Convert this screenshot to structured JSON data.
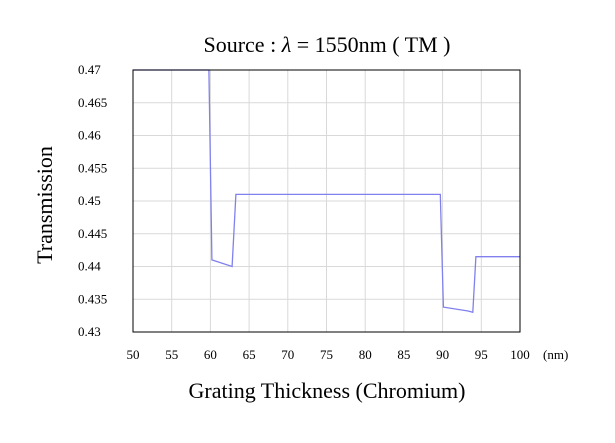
{
  "chart_data": {
    "type": "line",
    "title_prefix": "Source : ",
    "title_lambda": "λ",
    "title_rest": " = 1550nm ( TM )",
    "xlabel": "Grating Thickness (Chromium)",
    "ylabel": "Transmission",
    "x_unit": "(nm)",
    "xlim": [
      50,
      100
    ],
    "ylim": [
      0.43,
      0.47
    ],
    "x_ticks": [
      50,
      55,
      60,
      65,
      70,
      75,
      80,
      85,
      90,
      95,
      100
    ],
    "x_tick_labels": [
      "50",
      "55",
      "60",
      "65",
      "70",
      "75",
      "80",
      "85",
      "90",
      "95",
      "100"
    ],
    "y_ticks": [
      0.43,
      0.435,
      0.44,
      0.445,
      0.45,
      0.455,
      0.46,
      0.465,
      0.47
    ],
    "y_tick_labels": [
      "0.43",
      "0.435",
      "0.44",
      "0.445",
      "0.45",
      "0.455",
      "0.46",
      "0.465",
      "0.47"
    ],
    "grid": true,
    "line_color": "#8080ee",
    "series": [
      {
        "x": [
          50,
          59.8,
          60.2,
          62.8,
          63.3,
          89.7,
          90.1,
          93.3,
          93.9,
          94.3,
          100
        ],
        "y": [
          0.47,
          0.47,
          0.441,
          0.44,
          0.451,
          0.451,
          0.4338,
          0.4332,
          0.433,
          0.4415,
          0.4415
        ]
      }
    ]
  }
}
